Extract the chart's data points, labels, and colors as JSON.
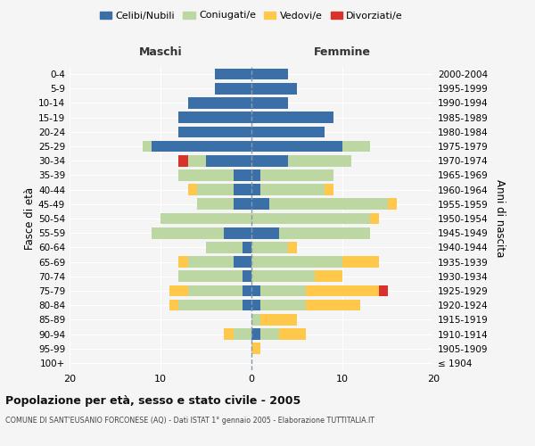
{
  "age_groups": [
    "100+",
    "95-99",
    "90-94",
    "85-89",
    "80-84",
    "75-79",
    "70-74",
    "65-69",
    "60-64",
    "55-59",
    "50-54",
    "45-49",
    "40-44",
    "35-39",
    "30-34",
    "25-29",
    "20-24",
    "15-19",
    "10-14",
    "5-9",
    "0-4"
  ],
  "birth_years": [
    "≤ 1904",
    "1905-1909",
    "1910-1914",
    "1915-1919",
    "1920-1924",
    "1925-1929",
    "1930-1934",
    "1935-1939",
    "1940-1944",
    "1945-1949",
    "1950-1954",
    "1955-1959",
    "1960-1964",
    "1965-1969",
    "1970-1974",
    "1975-1979",
    "1980-1984",
    "1985-1989",
    "1990-1994",
    "1995-1999",
    "2000-2004"
  ],
  "maschi": {
    "celibi": [
      0,
      0,
      0,
      0,
      1,
      1,
      1,
      2,
      1,
      3,
      0,
      2,
      2,
      2,
      5,
      11,
      8,
      8,
      7,
      4,
      4
    ],
    "coniugati": [
      0,
      0,
      2,
      0,
      7,
      6,
      7,
      5,
      4,
      8,
      10,
      4,
      4,
      6,
      2,
      1,
      0,
      0,
      0,
      0,
      0
    ],
    "vedovi": [
      0,
      0,
      1,
      0,
      1,
      2,
      0,
      1,
      0,
      0,
      0,
      0,
      1,
      0,
      0,
      0,
      0,
      0,
      0,
      0,
      0
    ],
    "divorziati": [
      0,
      0,
      0,
      0,
      0,
      0,
      0,
      0,
      0,
      0,
      0,
      0,
      0,
      0,
      1,
      0,
      0,
      0,
      0,
      0,
      0
    ]
  },
  "femmine": {
    "nubili": [
      0,
      0,
      1,
      0,
      1,
      1,
      0,
      0,
      0,
      3,
      0,
      2,
      1,
      1,
      4,
      10,
      8,
      9,
      4,
      5,
      4
    ],
    "coniugate": [
      0,
      0,
      2,
      1,
      5,
      5,
      7,
      10,
      4,
      10,
      13,
      13,
      7,
      8,
      7,
      3,
      0,
      0,
      0,
      0,
      0
    ],
    "vedove": [
      0,
      1,
      3,
      4,
      6,
      8,
      3,
      4,
      1,
      0,
      1,
      1,
      1,
      0,
      0,
      0,
      0,
      0,
      0,
      0,
      0
    ],
    "divorziate": [
      0,
      0,
      0,
      0,
      0,
      1,
      0,
      0,
      0,
      0,
      0,
      0,
      0,
      0,
      0,
      0,
      0,
      0,
      0,
      0,
      0
    ]
  },
  "colors": {
    "celibi": "#3a6fa8",
    "coniugati": "#bdd7a3",
    "vedovi": "#ffc84a",
    "divorziati": "#d9312b"
  },
  "title": "Popolazione per età, sesso e stato civile - 2005",
  "subtitle": "COMUNE DI SANT'EUSANIO FORCONESE (AQ) - Dati ISTAT 1° gennaio 2005 - Elaborazione TUTTITALIA.IT",
  "ylabel_left": "Fasce di età",
  "ylabel_right": "Anni di nascita",
  "xlabel_left": "Maschi",
  "xlabel_right": "Femmine",
  "xlim": 20,
  "bg_color": "#f5f5f5",
  "grid_color": "#ffffff"
}
